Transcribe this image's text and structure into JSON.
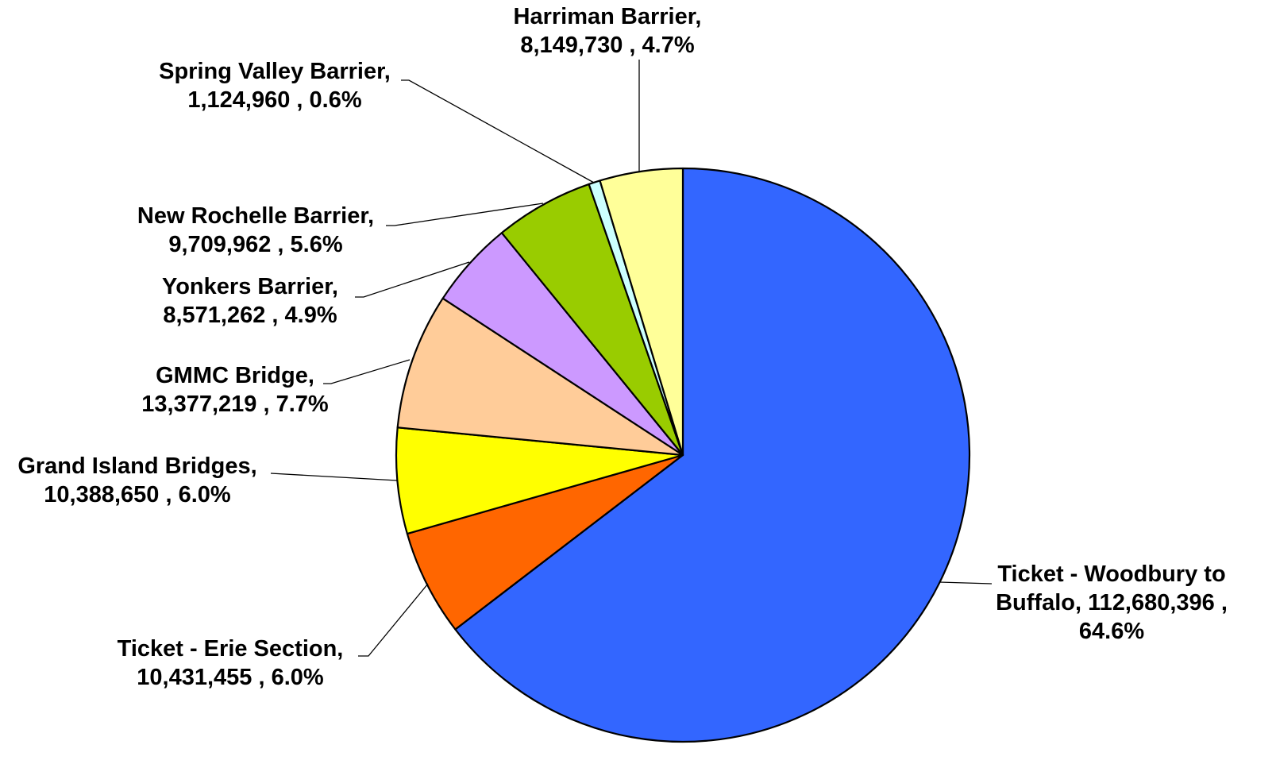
{
  "chart_data": {
    "type": "pie",
    "start_angle_deg": 0,
    "direction": "clockwise",
    "series": [
      {
        "name": "Ticket - Woodbury to Buffalo",
        "value": 112680396,
        "percent": "64.6%",
        "color": "#3366FF",
        "label_lines": [
          "Ticket - Woodbury to",
          "Buffalo, 112,680,396 ,",
          "64.6%"
        ]
      },
      {
        "name": "Ticket - Erie Section",
        "value": 10431455,
        "percent": "6.0%",
        "color": "#FF6600",
        "label_lines": [
          "Ticket - Erie Section,",
          "10,431,455 , 6.0%"
        ]
      },
      {
        "name": "Grand Island Bridges",
        "value": 10388650,
        "percent": "6.0%",
        "color": "#FFFF00",
        "label_lines": [
          "Grand Island Bridges,",
          "10,388,650 , 6.0%"
        ]
      },
      {
        "name": "GMMC Bridge",
        "value": 13377219,
        "percent": "7.7%",
        "color": "#FFCC99",
        "label_lines": [
          "GMMC Bridge,",
          "13,377,219 , 7.7%"
        ]
      },
      {
        "name": "Yonkers Barrier",
        "value": 8571262,
        "percent": "4.9%",
        "color": "#CC99FF",
        "label_lines": [
          "Yonkers Barrier,",
          "8,571,262 , 4.9%"
        ]
      },
      {
        "name": "New Rochelle Barrier",
        "value": 9709962,
        "percent": "5.6%",
        "color": "#99CC00",
        "label_lines": [
          "New Rochelle Barrier,",
          "9,709,962 , 5.6%"
        ]
      },
      {
        "name": "Spring Valley Barrier",
        "value": 1124960,
        "percent": "0.6%",
        "color": "#CCFFFF",
        "label_lines": [
          "Spring Valley Barrier,",
          "1,124,960 , 0.6%"
        ]
      },
      {
        "name": "Harriman Barrier",
        "value": 8149730,
        "percent": "4.7%",
        "color": "#FFFF99",
        "label_lines": [
          "Harriman Barrier,",
          "8,149,730 , 4.7%"
        ]
      }
    ]
  }
}
